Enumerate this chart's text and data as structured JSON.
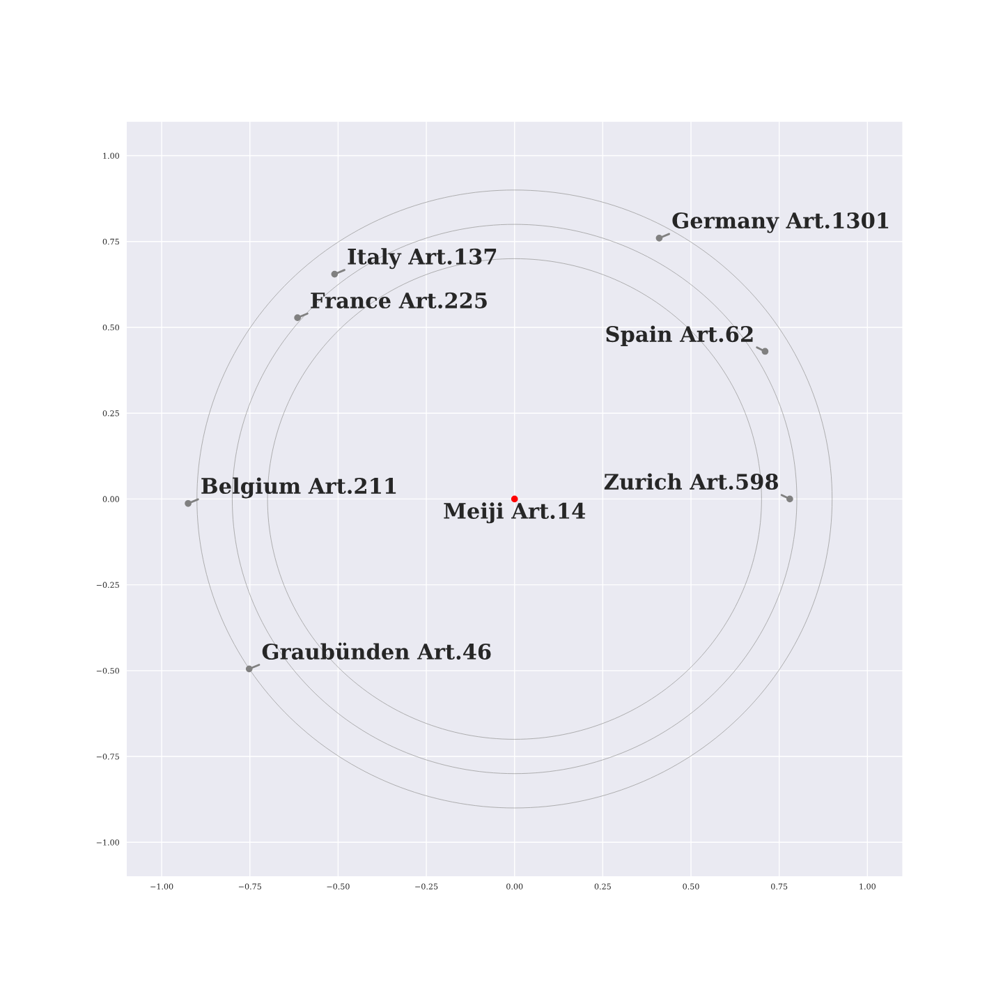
{
  "chart_data": {
    "type": "scatter",
    "x": [
      0,
      0.41,
      -0.51,
      -0.615,
      0.71,
      0.78,
      -0.925,
      -0.752
    ],
    "xlim": [
      -1.1,
      1.1
    ],
    "ylim": [
      -1.1,
      1.1
    ],
    "xticks": [
      {
        "value": -1,
        "label": "−1.00"
      },
      {
        "value": -0.75,
        "label": "−0.75"
      },
      {
        "value": -0.5,
        "label": "−0.50"
      },
      {
        "value": -0.25,
        "label": "−0.25"
      },
      {
        "value": 0,
        "label": "0.00"
      },
      {
        "value": 0.25,
        "label": "0.25"
      },
      {
        "value": 0.5,
        "label": "0.50"
      },
      {
        "value": 0.75,
        "label": "0.75"
      },
      {
        "value": 1,
        "label": "1.00"
      }
    ],
    "yticks": [
      {
        "value": -1,
        "label": "−1.00"
      },
      {
        "value": -0.75,
        "label": "−0.75"
      },
      {
        "value": -0.5,
        "label": "−0.50"
      },
      {
        "value": -0.25,
        "label": "−0.25"
      },
      {
        "value": 0,
        "label": "0.00"
      },
      {
        "value": 0.25,
        "label": "0.25"
      },
      {
        "value": 0.5,
        "label": "0.50"
      },
      {
        "value": 0.75,
        "label": "0.75"
      },
      {
        "value": 1,
        "label": "1.00"
      }
    ],
    "grid": true,
    "legend": false,
    "marker": "circle",
    "series": [
      {
        "type": "scatter",
        "values": [
          0,
          0.76,
          0.655,
          0.528,
          0.43,
          0.0,
          -0.013,
          -0.495
        ],
        "colors": [
          "#ff0000",
          "#808080",
          "#808080",
          "#808080",
          "#808080",
          "#808080",
          "#808080",
          "#808080"
        ]
      }
    ],
    "annotations": [
      {
        "text": "Meiji Art.14",
        "x": 0,
        "y": 0
      },
      {
        "text": "Germany Art.1301",
        "x": 0.41,
        "y": 0.76
      },
      {
        "text": "Italy Art.137",
        "x": -0.51,
        "y": 0.655
      },
      {
        "text": "France Art.225",
        "x": -0.615,
        "y": 0.528
      },
      {
        "text": "Spain Art.62",
        "x": 0.71,
        "y": 0.43
      },
      {
        "text": "Zurich Art.598",
        "x": 0.78,
        "y": 0.0
      },
      {
        "text": "Belgium Art.211",
        "x": -0.925,
        "y": -0.013
      },
      {
        "text": "Graubünden Art.46",
        "x": -0.752,
        "y": -0.495
      }
    ]
  }
}
